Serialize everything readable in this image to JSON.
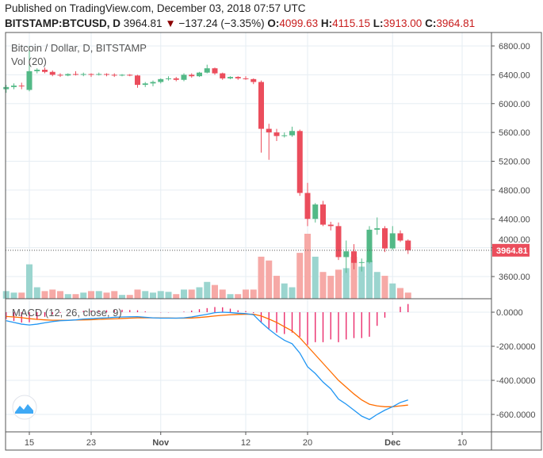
{
  "header": {
    "published": "Published on TradingView.com, December 03, 2018 07:57 UTC",
    "symbol": "BITSTAMP:BTCUSD, D",
    "last": "3964.81",
    "change": "−137.24 (−3.35%)",
    "o_label": "O:",
    "o": "4099.63",
    "h_label": "H:",
    "h": "4115.15",
    "l_label": "L:",
    "l": "3913.00",
    "c_label": "C:",
    "c": "3964.81"
  },
  "chart_data": [
    {
      "type": "candlestick",
      "title": "Bitcoin / Dollar, D, BITSTAMP",
      "volume_label": "Vol (20)",
      "dates": [
        "2018-10-12",
        "2018-10-13",
        "2018-10-14",
        "2018-10-15",
        "2018-10-16",
        "2018-10-17",
        "2018-10-18",
        "2018-10-19",
        "2018-10-20",
        "2018-10-21",
        "2018-10-22",
        "2018-10-23",
        "2018-10-24",
        "2018-10-25",
        "2018-10-26",
        "2018-10-27",
        "2018-10-28",
        "2018-10-29",
        "2018-10-30",
        "2018-10-31",
        "2018-11-01",
        "2018-11-02",
        "2018-11-03",
        "2018-11-04",
        "2018-11-05",
        "2018-11-06",
        "2018-11-07",
        "2018-11-08",
        "2018-11-09",
        "2018-11-10",
        "2018-11-11",
        "2018-11-12",
        "2018-11-13",
        "2018-11-14",
        "2018-11-15",
        "2018-11-16",
        "2018-11-17",
        "2018-11-18",
        "2018-11-19",
        "2018-11-20",
        "2018-11-21",
        "2018-11-22",
        "2018-11-23",
        "2018-11-24",
        "2018-11-25",
        "2018-11-26",
        "2018-11-27",
        "2018-11-28",
        "2018-11-29",
        "2018-11-30",
        "2018-12-01",
        "2018-12-02",
        "2018-12-03"
      ],
      "ohlc": [
        [
          6200,
          6260,
          6150,
          6230
        ],
        [
          6230,
          6280,
          6200,
          6250
        ],
        [
          6250,
          6290,
          6200,
          6240
        ],
        [
          6190,
          6800,
          6170,
          6450
        ],
        [
          6450,
          6490,
          6420,
          6470
        ],
        [
          6470,
          6500,
          6420,
          6440
        ],
        [
          6440,
          6460,
          6380,
          6400
        ],
        [
          6400,
          6420,
          6370,
          6390
        ],
        [
          6390,
          6420,
          6380,
          6410
        ],
        [
          6410,
          6450,
          6390,
          6400
        ],
        [
          6400,
          6430,
          6380,
          6410
        ],
        [
          6410,
          6420,
          6370,
          6400
        ],
        [
          6400,
          6430,
          6390,
          6410
        ],
        [
          6410,
          6420,
          6380,
          6400
        ],
        [
          6400,
          6420,
          6370,
          6390
        ],
        [
          6390,
          6410,
          6380,
          6400
        ],
        [
          6400,
          6410,
          6380,
          6390
        ],
        [
          6390,
          6400,
          6220,
          6260
        ],
        [
          6260,
          6300,
          6230,
          6280
        ],
        [
          6280,
          6320,
          6240,
          6300
        ],
        [
          6300,
          6350,
          6280,
          6340
        ],
        [
          6340,
          6380,
          6320,
          6350
        ],
        [
          6350,
          6370,
          6310,
          6330
        ],
        [
          6330,
          6420,
          6310,
          6400
        ],
        [
          6400,
          6420,
          6360,
          6380
        ],
        [
          6380,
          6440,
          6370,
          6430
        ],
        [
          6430,
          6540,
          6420,
          6490
        ],
        [
          6490,
          6500,
          6400,
          6420
        ],
        [
          6420,
          6430,
          6330,
          6350
        ],
        [
          6350,
          6380,
          6340,
          6370
        ],
        [
          6370,
          6380,
          6330,
          6350
        ],
        [
          6350,
          6380,
          6330,
          6340
        ],
        [
          6340,
          6350,
          6270,
          6300
        ],
        [
          6300,
          6320,
          5320,
          5650
        ],
        [
          5650,
          5720,
          5220,
          5600
        ],
        [
          5600,
          5650,
          5480,
          5550
        ],
        [
          5550,
          5600,
          5530,
          5560
        ],
        [
          5560,
          5680,
          5540,
          5620
        ],
        [
          5620,
          5640,
          4720,
          4760
        ],
        [
          4760,
          4900,
          4300,
          4400
        ],
        [
          4400,
          4620,
          4350,
          4600
        ],
        [
          4600,
          4650,
          4300,
          4320
        ],
        [
          4320,
          4360,
          4240,
          4300
        ],
        [
          4300,
          4350,
          3830,
          3870
        ],
        [
          3870,
          4100,
          3650,
          3950
        ],
        [
          3950,
          4050,
          3700,
          3790
        ],
        [
          3790,
          3850,
          3670,
          3800
        ],
        [
          3800,
          4300,
          3780,
          4250
        ],
        [
          4250,
          4420,
          4180,
          4270
        ],
        [
          4270,
          4300,
          3940,
          3990
        ],
        [
          3990,
          4300,
          3970,
          4200
        ],
        [
          4200,
          4240,
          4080,
          4100
        ],
        [
          4099.63,
          4115.15,
          3913,
          3964.81
        ]
      ],
      "volume": [
        10,
        8,
        8,
        45,
        15,
        10,
        12,
        10,
        6,
        6,
        8,
        10,
        10,
        8,
        10,
        5,
        5,
        12,
        10,
        8,
        10,
        9,
        6,
        12,
        12,
        15,
        22,
        18,
        12,
        6,
        6,
        12,
        12,
        55,
        50,
        30,
        20,
        15,
        60,
        85,
        55,
        35,
        30,
        38,
        40,
        55,
        42,
        50,
        35,
        30,
        20,
        14,
        8
      ],
      "y_ticks": [
        "6800.00",
        "6400.00",
        "6000.00",
        "5600.00",
        "5200.00",
        "4800.00",
        "4400.00",
        "4000.00",
        "3600.00"
      ],
      "y_range": [
        3420,
        6980
      ],
      "last_price_label": "3964.81",
      "x_ticks": [
        {
          "date": "2018-10-15",
          "label": "15"
        },
        {
          "date": "2018-10-23",
          "label": "23"
        },
        {
          "date": "2018-11-01",
          "label": "Nov"
        },
        {
          "date": "2018-11-12",
          "label": "12"
        },
        {
          "date": "2018-11-20",
          "label": "20"
        },
        {
          "date": "2018-12-01",
          "label": "Dec"
        },
        {
          "date": "2018-12-10",
          "label": "10"
        }
      ],
      "colors": {
        "up": "#53b987",
        "down": "#eb4d5c",
        "vol_up": "#9bd5cf",
        "vol_down": "#f6a9a6",
        "last": "#eb4d5c"
      }
    },
    {
      "type": "line",
      "title": "MACD (12, 26, close, 9)",
      "macd": [
        -50,
        -60,
        -70,
        -75,
        -70,
        -62,
        -55,
        -50,
        -48,
        -45,
        -40,
        -38,
        -35,
        -33,
        -30,
        -28,
        -27,
        -26,
        -30,
        -33,
        -35,
        -35,
        -35,
        -33,
        -28,
        -20,
        -12,
        -3,
        0,
        -2,
        -6,
        -8,
        -15,
        -60,
        -100,
        -135,
        -165,
        -185,
        -240,
        -320,
        -360,
        -410,
        -450,
        -510,
        -540,
        -575,
        -610,
        -630,
        -600,
        -575,
        -555,
        -530,
        -515
      ],
      "signal": [
        -25,
        -28,
        -32,
        -38,
        -42,
        -45,
        -47,
        -47,
        -47,
        -46,
        -45,
        -44,
        -42,
        -40,
        -39,
        -37,
        -35,
        -33,
        -33,
        -33,
        -34,
        -34,
        -35,
        -35,
        -34,
        -31,
        -27,
        -22,
        -18,
        -15,
        -13,
        -12,
        -12,
        -22,
        -40,
        -60,
        -85,
        -110,
        -150,
        -200,
        -250,
        -300,
        -350,
        -400,
        -440,
        -480,
        -515,
        -540,
        -550,
        -555,
        -555,
        -550,
        -545
      ],
      "y_ticks": [
        "0.0000",
        "-200.0000",
        "-400.0000",
        "-600.0000"
      ],
      "y_range": [
        -690,
        80
      ],
      "colors": {
        "macd": "#2196f3",
        "signal": "#ff6d00",
        "histogram": "#e91e63"
      }
    }
  ]
}
